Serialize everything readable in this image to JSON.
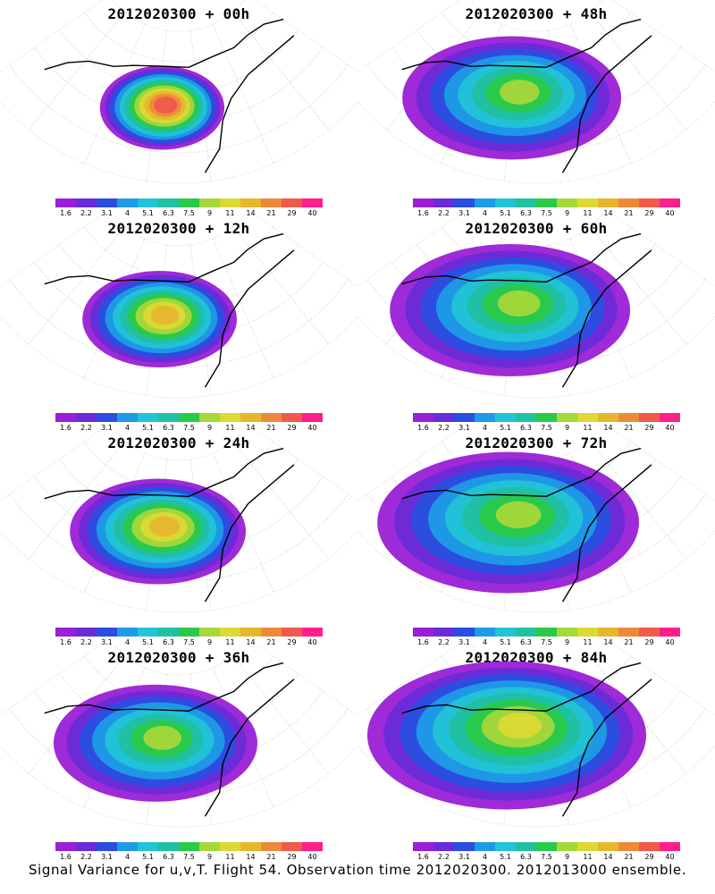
{
  "colorbar": {
    "labels": [
      "1.6",
      "2.2",
      "3.1",
      "4",
      "5.1",
      "6.3",
      "7.5",
      "9",
      "11",
      "14",
      "21",
      "29",
      "40"
    ],
    "colors": [
      "#9a1fd6",
      "#6a2bd8",
      "#2a4ee0",
      "#1e9be6",
      "#22c3d6",
      "#20c0a0",
      "#2ac94a",
      "#a5d83a",
      "#dcd934",
      "#e6b72e",
      "#ec8a3a",
      "#f05a4a",
      "#ff1f8a"
    ]
  },
  "panels": [
    {
      "title": "2012020300 + 00h",
      "spread": 0.18,
      "core_level": 12
    },
    {
      "title": "2012020300 + 48h",
      "spread": 0.62,
      "core_level": 8
    },
    {
      "title": "2012020300 + 12h",
      "spread": 0.32,
      "core_level": 10
    },
    {
      "title": "2012020300 + 60h",
      "spread": 0.72,
      "core_level": 8
    },
    {
      "title": "2012020300 + 24h",
      "spread": 0.42,
      "core_level": 10
    },
    {
      "title": "2012020300 + 72h",
      "spread": 0.82,
      "core_level": 8
    },
    {
      "title": "2012020300 + 36h",
      "spread": 0.55,
      "core_level": 8
    },
    {
      "title": "2012020300 + 84h",
      "spread": 0.9,
      "core_level": 9
    }
  ],
  "caption": "Signal Variance for u,v,T. Flight 54. Observation time 2012020300. 2012013000 ensemble."
}
